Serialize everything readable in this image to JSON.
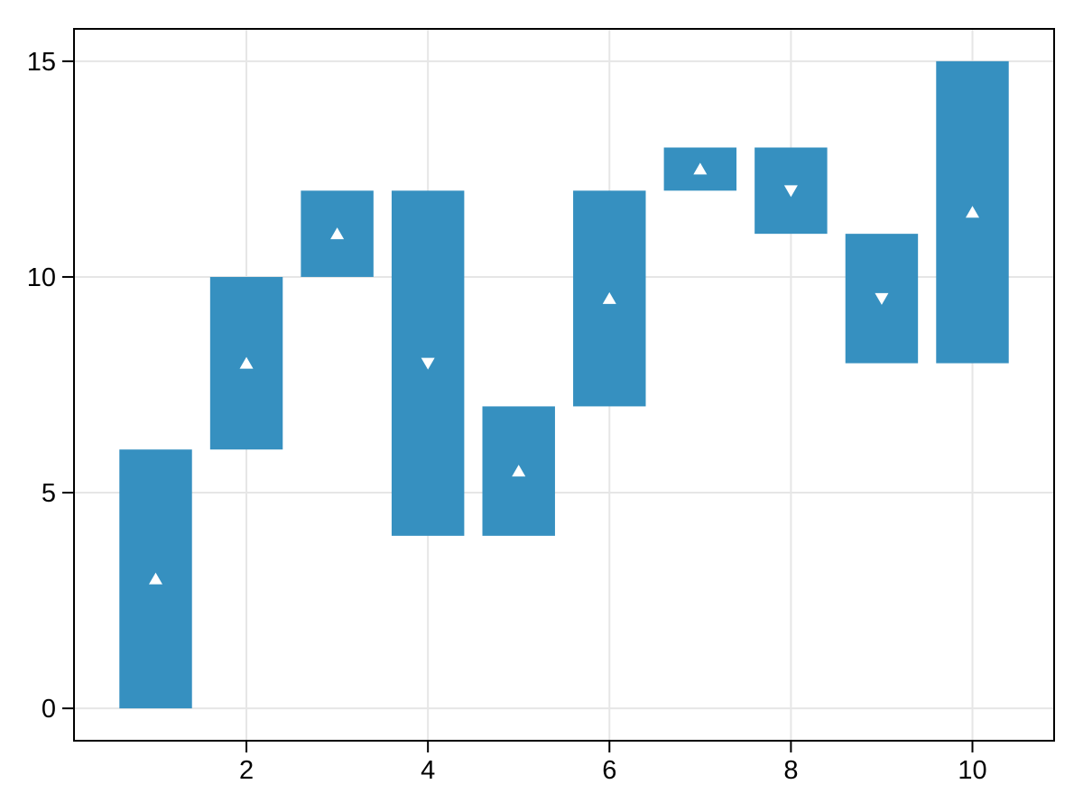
{
  "chart_data": {
    "type": "bar",
    "subtype": "floating-range-bars-with-midpoint-markers",
    "title": "",
    "xlabel": "",
    "ylabel": "",
    "legend": null,
    "grid": true,
    "x": [
      1,
      2,
      3,
      4,
      5,
      6,
      7,
      8,
      9,
      10
    ],
    "bars": [
      {
        "x": 1,
        "low": 0,
        "high": 6,
        "mid": 3,
        "marker": "triangle-up"
      },
      {
        "x": 2,
        "low": 6,
        "high": 10,
        "mid": 8,
        "marker": "triangle-up"
      },
      {
        "x": 3,
        "low": 10,
        "high": 12,
        "mid": 11,
        "marker": "triangle-up"
      },
      {
        "x": 4,
        "low": 4,
        "high": 12,
        "mid": 8,
        "marker": "triangle-down"
      },
      {
        "x": 5,
        "low": 4,
        "high": 7,
        "mid": 5.5,
        "marker": "triangle-up"
      },
      {
        "x": 6,
        "low": 7,
        "high": 12,
        "mid": 9.5,
        "marker": "triangle-up"
      },
      {
        "x": 7,
        "low": 12,
        "high": 13,
        "mid": 12.5,
        "marker": "triangle-up"
      },
      {
        "x": 8,
        "low": 11,
        "high": 13,
        "mid": 12,
        "marker": "triangle-down"
      },
      {
        "x": 9,
        "low": 8,
        "high": 11,
        "mid": 9.5,
        "marker": "triangle-down"
      },
      {
        "x": 10,
        "low": 8,
        "high": 15,
        "mid": 11.5,
        "marker": "triangle-up"
      }
    ],
    "bar_width": 0.8,
    "xticks": [
      2,
      4,
      6,
      8,
      10
    ],
    "xtick_labels": [
      "2",
      "4",
      "6",
      "8",
      "10"
    ],
    "yticks": [
      0,
      5,
      10,
      15
    ],
    "ytick_labels": [
      "0",
      "5",
      "10",
      "15"
    ],
    "xlim": [
      0.1,
      10.9
    ],
    "ylim": [
      -0.75,
      15.75
    ],
    "colors": {
      "bar_fill": "#3690c0",
      "marker_fill": "#ffffff",
      "grid_line": "#e6e6e6",
      "spine": "#000000",
      "tick_label": "#000000",
      "background": "#ffffff"
    }
  }
}
